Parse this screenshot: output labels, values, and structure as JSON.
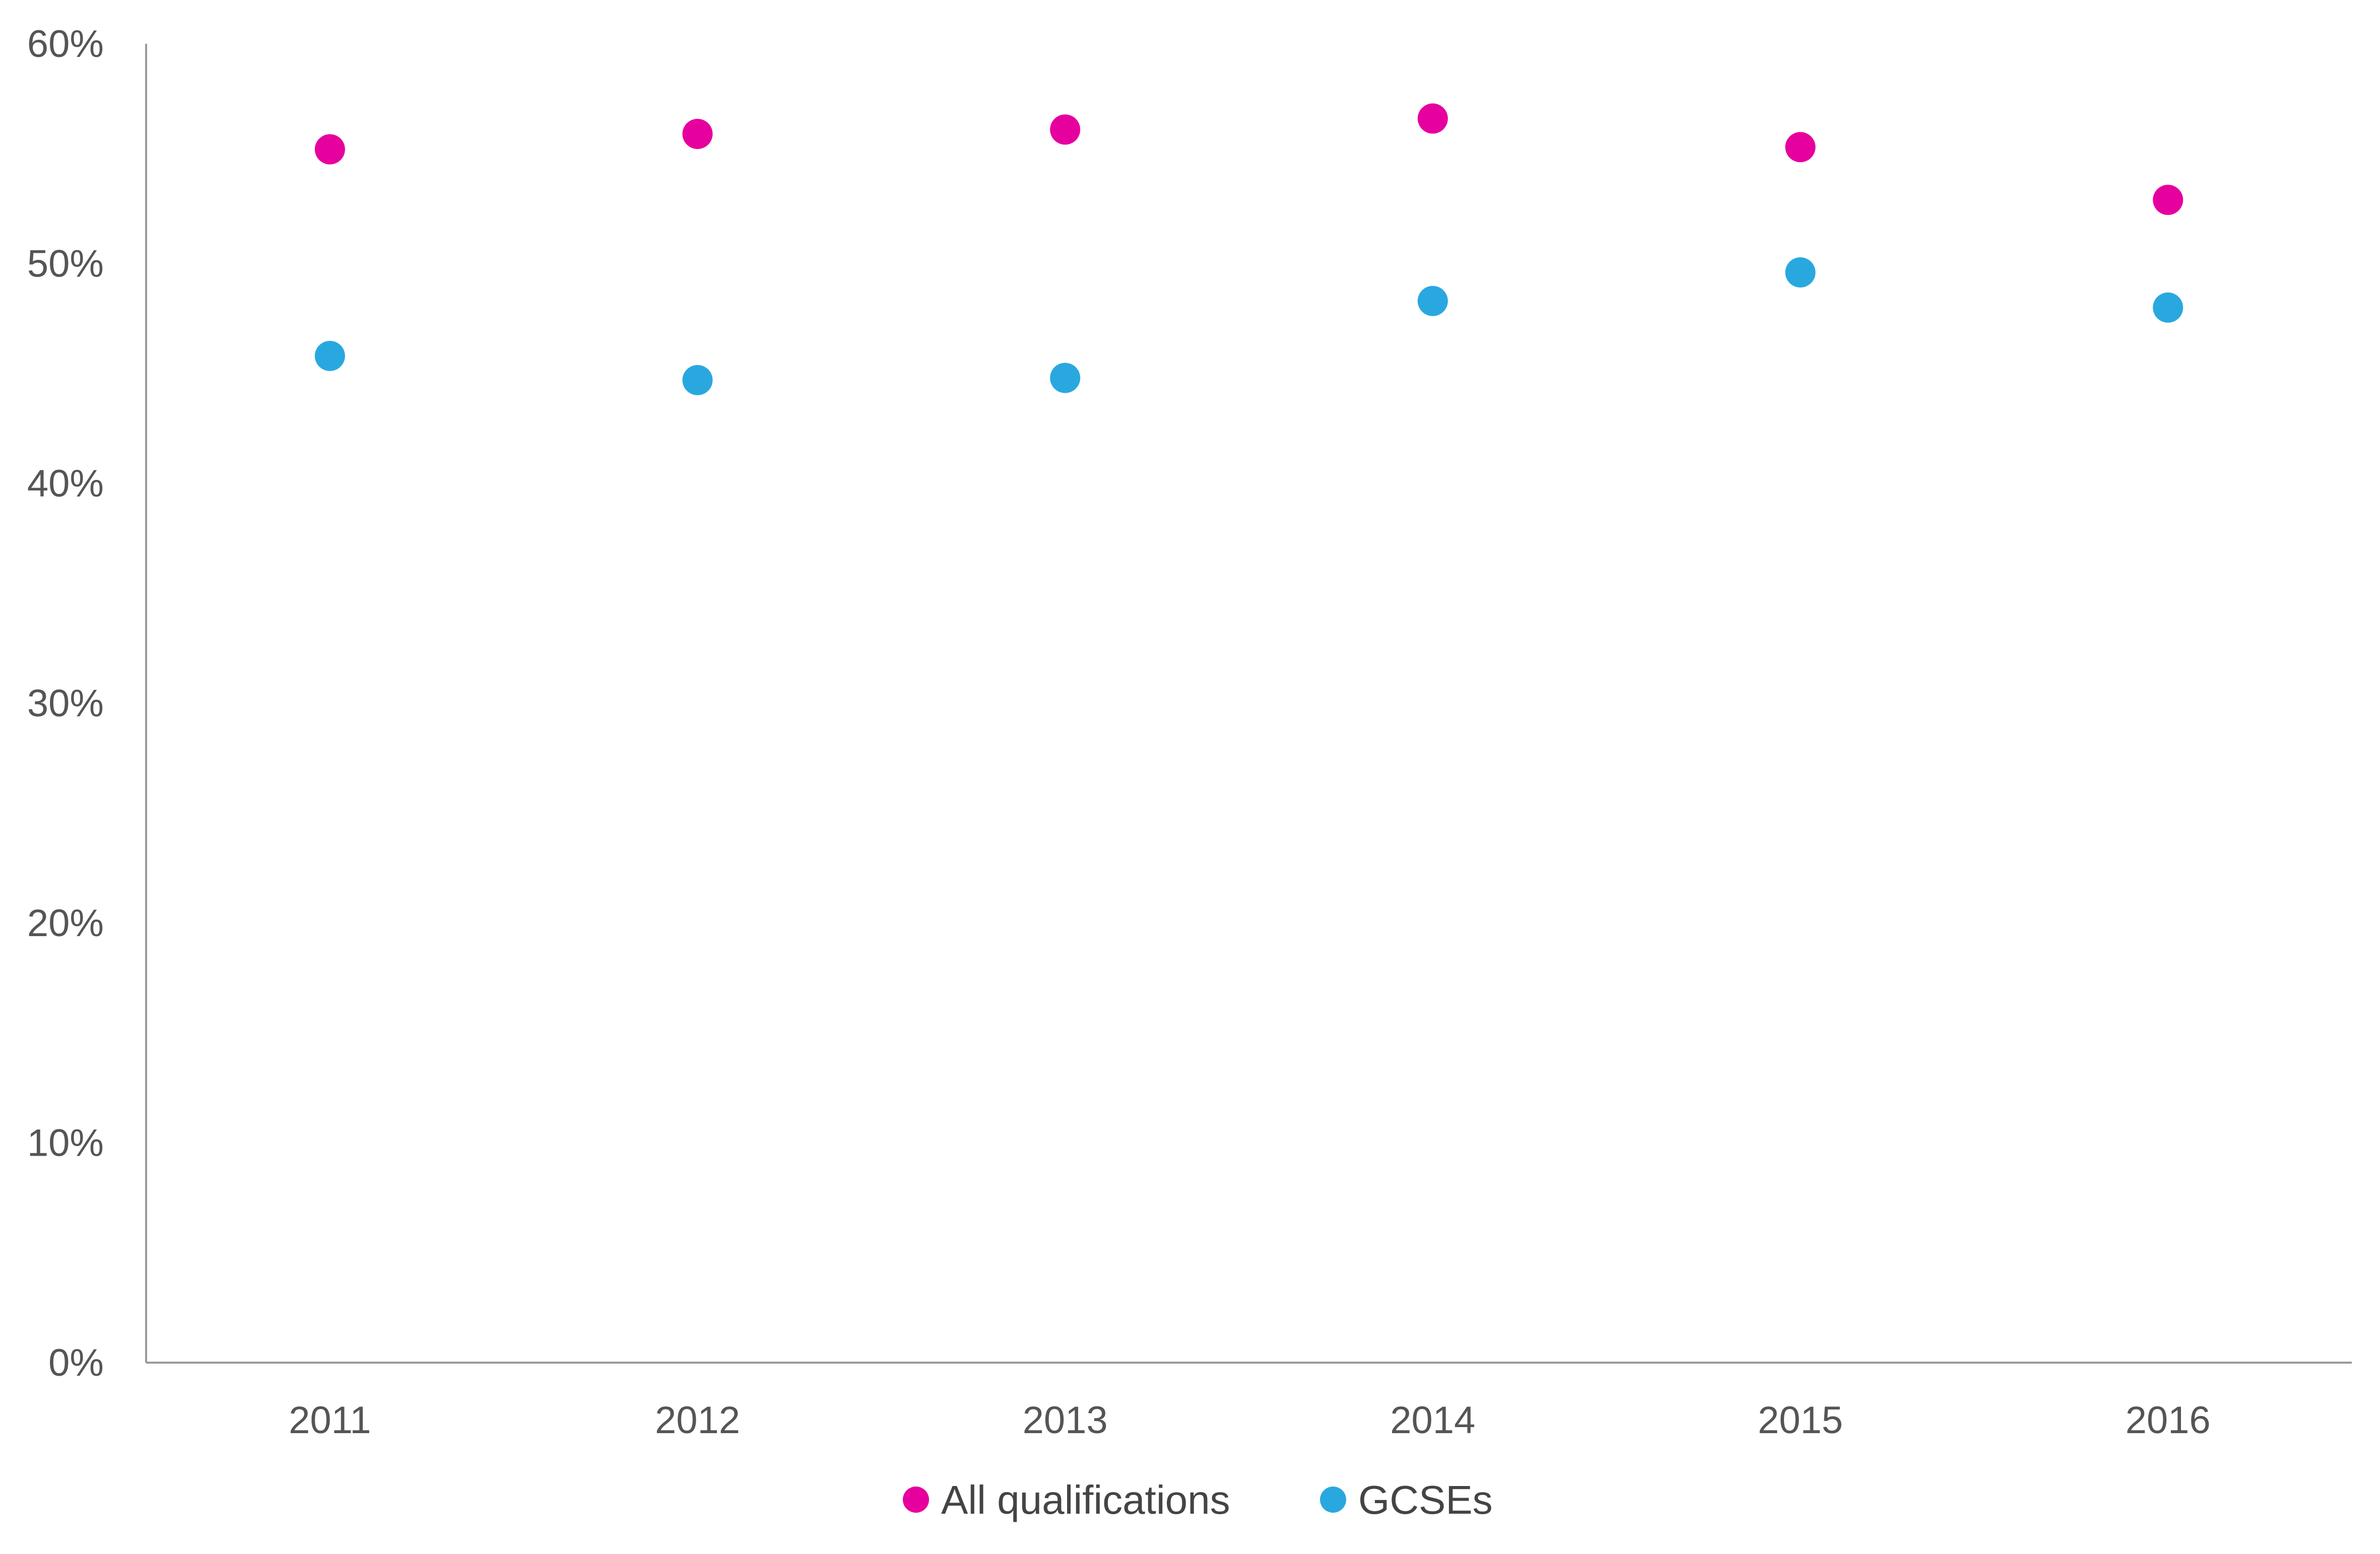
{
  "chart_data": {
    "type": "scatter",
    "title": "",
    "xlabel": "",
    "ylabel": "",
    "categories": [
      "2011",
      "2012",
      "2013",
      "2014",
      "2015",
      "2016"
    ],
    "series": [
      {
        "name": "All qualifications",
        "color": "#e6009e",
        "values": [
          55.2,
          55.9,
          56.1,
          56.6,
          55.3,
          52.9
        ]
      },
      {
        "name": "GCSEs",
        "color": "#29a8e0",
        "values": [
          45.8,
          44.7,
          44.8,
          48.3,
          49.6,
          48.0
        ]
      }
    ],
    "ylim": [
      0,
      60
    ],
    "yticks": [
      "0%",
      "10%",
      "20%",
      "30%",
      "40%",
      "50%",
      "60%"
    ],
    "grid": false,
    "legend_position": "bottom"
  }
}
